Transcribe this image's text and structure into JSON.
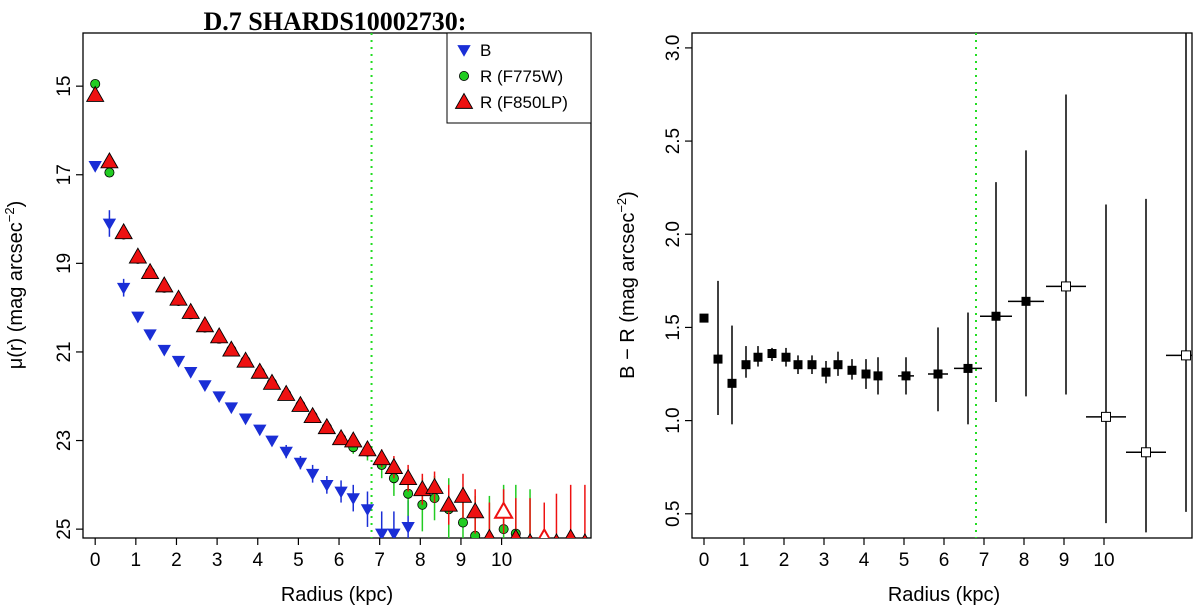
{
  "figure_title": "D.7 SHARDS10002730:",
  "chart_data": [
    {
      "type": "scatter",
      "title": "D.7 SHARDS10002730:",
      "xlabel": "Radius (kpc)",
      "ylabel": "μ(r) (mag arcsec",
      "ylabel_exp": "−2",
      "ylabel_close": ")",
      "xlim": [
        -0.3,
        12.2
      ],
      "ylim": [
        25.2,
        13.8
      ],
      "y_inverted": true,
      "x_ticks": [
        "0",
        "1",
        "2",
        "3",
        "4",
        "5",
        "6",
        "7",
        "8",
        "9",
        "10"
      ],
      "x_tick_values": [
        0,
        1,
        2,
        3,
        4,
        5,
        6,
        7,
        8,
        9,
        10
      ],
      "y_ticks": [
        "15",
        "17",
        "19",
        "21",
        "23",
        "25"
      ],
      "y_tick_values": [
        15,
        17,
        19,
        21,
        23,
        25
      ],
      "vline": {
        "x": 6.8,
        "color": "#22dd22"
      },
      "legend": {
        "position": "top-right",
        "entries": [
          {
            "label": "B",
            "marker": "triangle-down",
            "color": "#1a2ed6"
          },
          {
            "label": "R (F775W)",
            "marker": "circle",
            "color": "#22cc22"
          },
          {
            "label": "R (F850LP)",
            "marker": "triangle-up",
            "color": "#ee1111"
          }
        ]
      },
      "series": [
        {
          "name": "B",
          "marker": "triangle-down",
          "color": "#1a2ed6",
          "x": [
            0.0,
            0.35,
            0.7,
            1.05,
            1.35,
            1.7,
            2.05,
            2.35,
            2.7,
            3.05,
            3.35,
            3.7,
            4.05,
            4.35,
            4.7,
            5.05,
            5.35,
            5.7,
            6.05,
            6.35,
            6.7,
            7.05,
            7.35,
            7.7
          ],
          "y": [
            16.8,
            18.1,
            19.55,
            20.2,
            20.6,
            20.95,
            21.2,
            21.45,
            21.75,
            22.0,
            22.25,
            22.5,
            22.75,
            23.0,
            23.25,
            23.5,
            23.75,
            24.0,
            24.15,
            24.3,
            24.55,
            25.1,
            25.1,
            24.95
          ],
          "err": [
            0.05,
            0.3,
            0.2,
            0.1,
            0.1,
            0.1,
            0.1,
            0.1,
            0.1,
            0.1,
            0.1,
            0.1,
            0.1,
            0.1,
            0.15,
            0.15,
            0.2,
            0.2,
            0.25,
            0.3,
            0.4,
            0.5,
            0.5,
            0.6
          ]
        },
        {
          "name": "R (F775W)",
          "marker": "circle",
          "color": "#22cc22",
          "x": [
            0.0,
            0.35,
            0.7,
            1.05,
            1.35,
            1.7,
            2.05,
            2.35,
            2.7,
            3.05,
            3.35,
            3.7,
            4.05,
            4.35,
            4.7,
            5.05,
            5.35,
            5.7,
            6.05,
            6.35,
            6.7,
            7.05,
            7.35,
            7.7,
            8.05,
            8.35,
            8.7,
            9.05,
            9.35,
            9.7,
            10.05,
            10.35,
            10.7
          ],
          "y": [
            14.95,
            16.95,
            18.35,
            18.9,
            19.2,
            19.55,
            19.85,
            20.15,
            20.45,
            20.7,
            20.95,
            21.2,
            21.45,
            21.7,
            21.95,
            22.2,
            22.45,
            22.7,
            22.95,
            23.15,
            23.25,
            23.55,
            23.85,
            24.2,
            24.45,
            24.3,
            24.55,
            24.85,
            25.15,
            25.25,
            25.0,
            25.1,
            25.3
          ],
          "err": [
            0.05,
            0.1,
            0.1,
            0.05,
            0.05,
            0.05,
            0.05,
            0.05,
            0.05,
            0.05,
            0.05,
            0.05,
            0.05,
            0.05,
            0.05,
            0.05,
            0.05,
            0.1,
            0.1,
            0.15,
            0.2,
            0.3,
            0.4,
            0.5,
            0.6,
            0.5,
            0.7,
            0.8,
            0.9,
            1.0,
            1.0,
            1.1,
            1.2
          ]
        },
        {
          "name": "R (F850LP)",
          "marker": "triangle-up",
          "color": "#ee1111",
          "x": [
            0.0,
            0.35,
            0.7,
            1.05,
            1.35,
            1.7,
            2.05,
            2.35,
            2.7,
            3.05,
            3.35,
            3.7,
            4.05,
            4.35,
            4.7,
            5.05,
            5.35,
            5.7,
            6.05,
            6.35,
            6.7,
            7.05,
            7.35,
            7.7,
            8.05,
            8.35,
            8.7,
            9.05,
            9.35,
            9.7,
            10.05,
            10.35,
            10.7,
            11.05,
            11.35,
            11.7,
            12.05
          ],
          "y": [
            15.2,
            16.7,
            18.3,
            18.85,
            19.2,
            19.5,
            19.8,
            20.1,
            20.4,
            20.65,
            20.95,
            21.2,
            21.45,
            21.7,
            21.95,
            22.2,
            22.45,
            22.7,
            22.95,
            23.0,
            23.2,
            23.4,
            23.6,
            23.85,
            24.1,
            24.05,
            24.45,
            24.25,
            24.6,
            25.2,
            24.6,
            25.2,
            25.3,
            25.2,
            25.3,
            25.2,
            25.3
          ],
          "hollow": [
            false,
            false,
            false,
            false,
            false,
            false,
            false,
            false,
            false,
            false,
            false,
            false,
            false,
            false,
            false,
            false,
            false,
            false,
            false,
            false,
            false,
            false,
            false,
            false,
            false,
            false,
            false,
            false,
            false,
            false,
            true,
            false,
            false,
            true,
            false,
            false,
            false
          ],
          "err": [
            0.1,
            0.1,
            0.1,
            0.05,
            0.05,
            0.05,
            0.05,
            0.05,
            0.05,
            0.05,
            0.05,
            0.05,
            0.05,
            0.05,
            0.05,
            0.05,
            0.05,
            0.1,
            0.1,
            0.1,
            0.15,
            0.2,
            0.25,
            0.3,
            0.35,
            0.35,
            0.45,
            0.5,
            0.5,
            0.8,
            0.5,
            0.9,
            1.0,
            0.8,
            1.1,
            1.2,
            1.3
          ]
        }
      ]
    },
    {
      "type": "scatter",
      "title": "",
      "xlabel": "Radius (kpc)",
      "ylabel": "B − R (mag arcsec",
      "ylabel_exp": "−2",
      "ylabel_close": ")",
      "xlim": [
        -0.3,
        12.2
      ],
      "ylim": [
        0.37,
        3.08
      ],
      "y_inverted": false,
      "x_ticks": [
        "0",
        "1",
        "2",
        "3",
        "4",
        "5",
        "6",
        "7",
        "8",
        "9",
        "10"
      ],
      "x_tick_values": [
        0,
        1,
        2,
        3,
        4,
        5,
        6,
        7,
        8,
        9,
        10
      ],
      "y_ticks": [
        "0.5",
        "1.0",
        "1.5",
        "2.0",
        "2.5",
        "3.0"
      ],
      "y_tick_values": [
        0.5,
        1.0,
        1.5,
        2.0,
        2.5,
        3.0
      ],
      "vline": {
        "x": 6.8,
        "color": "#22dd22"
      },
      "series": [
        {
          "name": "B - R",
          "marker": "square",
          "color": "#000000",
          "x": [
            0.0,
            0.35,
            0.7,
            1.05,
            1.35,
            1.7,
            2.05,
            2.35,
            2.7,
            3.05,
            3.35,
            3.7,
            4.05,
            4.35,
            5.05,
            5.85,
            6.6,
            7.3,
            8.05,
            9.05,
            10.05,
            11.05,
            12.05
          ],
          "y": [
            1.55,
            1.33,
            1.2,
            1.3,
            1.34,
            1.36,
            1.34,
            1.3,
            1.3,
            1.26,
            1.3,
            1.27,
            1.25,
            1.24,
            1.24,
            1.25,
            1.28,
            1.56,
            1.64,
            1.72,
            1.02,
            0.83,
            1.35
          ],
          "err_lo": [
            0.0,
            0.3,
            0.22,
            0.07,
            0.05,
            0.04,
            0.05,
            0.05,
            0.05,
            0.06,
            0.06,
            0.05,
            0.08,
            0.1,
            0.1,
            0.2,
            0.3,
            0.46,
            0.51,
            0.58,
            0.57,
            0.43,
            0.84
          ],
          "err_hi": [
            0.0,
            0.42,
            0.31,
            0.1,
            0.06,
            0.03,
            0.05,
            0.05,
            0.05,
            0.06,
            0.07,
            0.06,
            0.08,
            0.1,
            0.1,
            0.25,
            0.3,
            0.72,
            0.81,
            1.03,
            1.14,
            1.36,
            1.85
          ],
          "xerr": [
            0.0,
            0.0,
            0.0,
            0.0,
            0.0,
            0.0,
            0.0,
            0.0,
            0.0,
            0.0,
            0.0,
            0.0,
            0.0,
            0.0,
            0.2,
            0.25,
            0.35,
            0.4,
            0.45,
            0.5,
            0.5,
            0.5,
            0.5
          ],
          "hollow": [
            false,
            false,
            false,
            false,
            false,
            false,
            false,
            false,
            false,
            false,
            false,
            false,
            false,
            false,
            false,
            false,
            false,
            false,
            false,
            true,
            true,
            true,
            true
          ]
        }
      ]
    }
  ]
}
